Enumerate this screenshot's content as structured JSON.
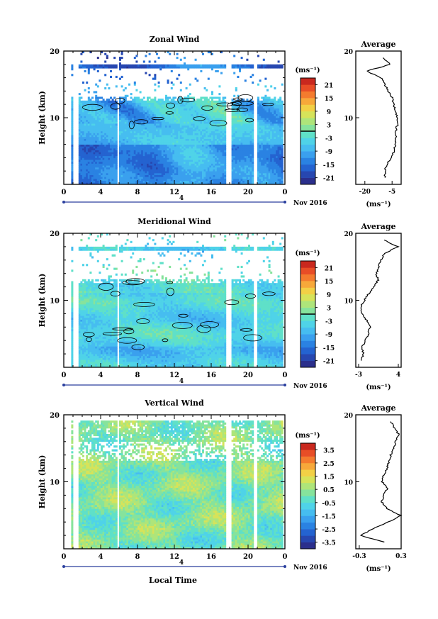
{
  "figure": {
    "xlabel": "Local Time",
    "date_label": "Nov 2016",
    "day_label": "4",
    "avg_title": "Average",
    "unit_label": "(ms⁻¹)",
    "ylabel": "Height (km)"
  },
  "chart_data": [
    {
      "type": "heatmap",
      "title": "Zonal Wind",
      "xlabel": "",
      "ylabel": "Height (km)",
      "x_ticks": [
        "0",
        "4",
        "8",
        "12",
        "16",
        "20",
        "0"
      ],
      "y_ticks": [
        "20",
        "10"
      ],
      "ylim": [
        0,
        20
      ],
      "xlim": [
        0,
        24
      ],
      "colorbar": {
        "unit": "(ms⁻¹)",
        "ticks": [
          "21",
          "15",
          "9",
          "3",
          "-3",
          "-9",
          "-15",
          "-21"
        ],
        "range": [
          -24,
          24
        ]
      },
      "profile": {
        "title": "Average",
        "x_ticks": [
          "-20",
          "-5"
        ],
        "xlim": [
          -25,
          0
        ],
        "xunit": "(ms⁻¹)",
        "heights": [
          1,
          2,
          3,
          4,
          5,
          6,
          7,
          8,
          9,
          10,
          11,
          12,
          13,
          14,
          15,
          16,
          17,
          18,
          19
        ],
        "values": [
          -9,
          -9,
          -8,
          -5,
          -4,
          -3,
          -3,
          -3,
          -2,
          -2,
          -3,
          -4,
          -5,
          -7,
          -9,
          -11,
          -19,
          -6,
          -10
        ]
      }
    },
    {
      "type": "heatmap",
      "title": "Meridional Wind",
      "xlabel": "",
      "ylabel": "Height (km)",
      "x_ticks": [
        "0",
        "4",
        "8",
        "12",
        "16",
        "20",
        "0"
      ],
      "y_ticks": [
        "20",
        "10"
      ],
      "ylim": [
        0,
        20
      ],
      "xlim": [
        0,
        24
      ],
      "colorbar": {
        "unit": "(ms⁻¹)",
        "ticks": [
          "21",
          "15",
          "9",
          "3",
          "-3",
          "-9",
          "-15",
          "-21"
        ],
        "range": [
          -24,
          24
        ]
      },
      "profile": {
        "title": "Average",
        "x_ticks": [
          "-3",
          "4"
        ],
        "xlim": [
          -3.5,
          4.5
        ],
        "xunit": "(ms⁻¹)",
        "heights": [
          1,
          2,
          3,
          4,
          5,
          6,
          7,
          8,
          9,
          10,
          11,
          12,
          13,
          14,
          15,
          16,
          17,
          18,
          19
        ],
        "values": [
          -2.5,
          -2.2,
          -2.4,
          -1.8,
          -1.3,
          -1.0,
          -1.6,
          -2.4,
          -2.6,
          -2.0,
          -1.2,
          -0.3,
          0.4,
          0.1,
          0.6,
          0.9,
          1.6,
          3.9,
          1.5
        ]
      }
    },
    {
      "type": "heatmap",
      "title": "Vertical Wind",
      "xlabel": "Local Time",
      "ylabel": "Height (km)",
      "x_ticks": [
        "0",
        "4",
        "8",
        "12",
        "16",
        "20",
        "0"
      ],
      "y_ticks": [
        "20",
        "10"
      ],
      "ylim": [
        0,
        20
      ],
      "xlim": [
        0,
        24
      ],
      "colorbar": {
        "unit": "(ms⁻¹)",
        "ticks": [
          "3.5",
          "2.5",
          "1.5",
          "0.5",
          "-0.5",
          "-1.5",
          "-2.5",
          "-3.5"
        ],
        "range": [
          -4,
          4
        ]
      },
      "profile": {
        "title": "Average",
        "x_ticks": [
          "-0.3",
          "0.3"
        ],
        "xlim": [
          -0.35,
          0.3
        ],
        "xunit": "(ms⁻¹)",
        "heights": [
          1,
          2,
          3,
          4,
          5,
          6,
          7,
          8,
          9,
          10,
          11,
          12,
          13,
          14,
          15,
          16,
          17,
          18,
          19
        ],
        "values": [
          0.05,
          -0.28,
          -0.1,
          0.12,
          0.29,
          0.1,
          0.02,
          0.05,
          0.1,
          0.03,
          0.05,
          0.1,
          0.12,
          0.15,
          0.2,
          0.22,
          0.27,
          0.2,
          0.15
        ]
      }
    }
  ]
}
